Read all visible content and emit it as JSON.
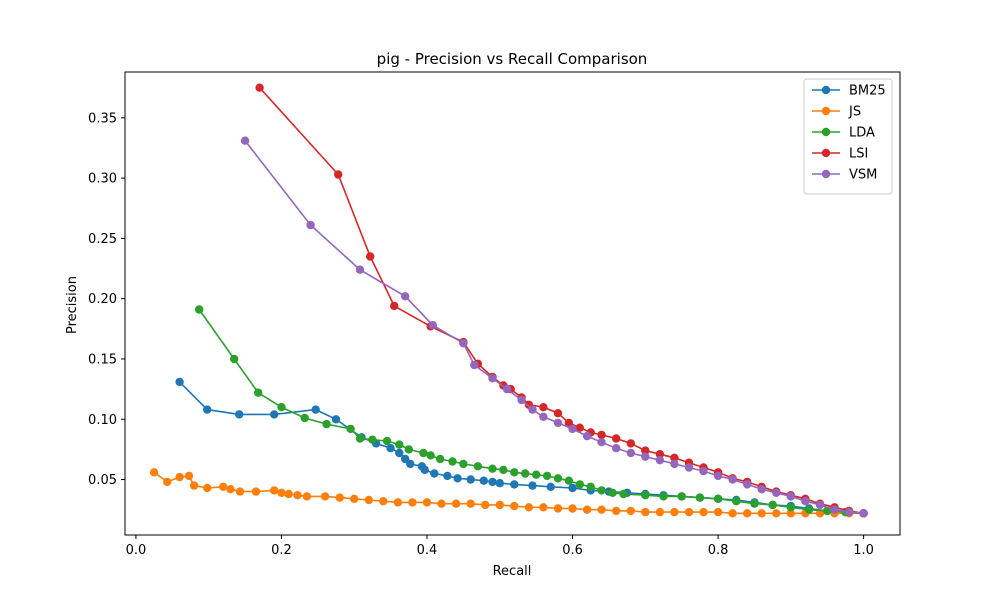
{
  "chart_data": {
    "type": "line",
    "title": "pig - Precision vs Recall Comparison",
    "xlabel": "Recall",
    "ylabel": "Precision",
    "xlim": [
      -0.015,
      1.05
    ],
    "ylim": [
      0.004,
      0.388
    ],
    "xticks": [
      0.0,
      0.2,
      0.4,
      0.6,
      0.8,
      1.0
    ],
    "xtick_labels": [
      "0.0",
      "0.2",
      "0.4",
      "0.6",
      "0.8",
      "1.0"
    ],
    "yticks": [
      0.05,
      0.1,
      0.15,
      0.2,
      0.25,
      0.3,
      0.35
    ],
    "ytick_labels": [
      "0.05",
      "0.10",
      "0.15",
      "0.20",
      "0.25",
      "0.30",
      "0.35"
    ],
    "grid": false,
    "legend_position": "top-right",
    "series": [
      {
        "name": "BM25",
        "color": "#1f77b4",
        "x": [
          0.06,
          0.098,
          0.142,
          0.19,
          0.247,
          0.275,
          0.31,
          0.33,
          0.35,
          0.362,
          0.37,
          0.377,
          0.393,
          0.397,
          0.41,
          0.428,
          0.442,
          0.46,
          0.478,
          0.49,
          0.5,
          0.52,
          0.545,
          0.57,
          0.6,
          0.625,
          0.65,
          0.675,
          0.7,
          0.725,
          0.75,
          0.775,
          0.8,
          0.825,
          0.85,
          0.875,
          0.9,
          0.925,
          0.95,
          0.975,
          1.0
        ],
        "y": [
          0.131,
          0.108,
          0.104,
          0.104,
          0.108,
          0.1,
          0.085,
          0.08,
          0.076,
          0.072,
          0.067,
          0.063,
          0.061,
          0.058,
          0.055,
          0.053,
          0.051,
          0.05,
          0.049,
          0.048,
          0.047,
          0.046,
          0.045,
          0.044,
          0.043,
          0.041,
          0.04,
          0.039,
          0.038,
          0.037,
          0.036,
          0.035,
          0.034,
          0.033,
          0.031,
          0.029,
          0.028,
          0.026,
          0.024,
          0.023,
          0.022
        ]
      },
      {
        "name": "JS",
        "color": "#ff7f0e",
        "x": [
          0.025,
          0.043,
          0.06,
          0.073,
          0.08,
          0.098,
          0.12,
          0.13,
          0.143,
          0.165,
          0.19,
          0.2,
          0.21,
          0.222,
          0.235,
          0.26,
          0.28,
          0.3,
          0.32,
          0.34,
          0.36,
          0.38,
          0.4,
          0.42,
          0.44,
          0.46,
          0.48,
          0.5,
          0.52,
          0.54,
          0.56,
          0.58,
          0.6,
          0.62,
          0.64,
          0.66,
          0.68,
          0.7,
          0.72,
          0.74,
          0.76,
          0.78,
          0.8,
          0.82,
          0.84,
          0.86,
          0.88,
          0.9,
          0.92,
          0.94,
          0.96,
          0.98,
          1.0
        ],
        "y": [
          0.056,
          0.048,
          0.052,
          0.053,
          0.045,
          0.043,
          0.044,
          0.042,
          0.04,
          0.04,
          0.041,
          0.039,
          0.038,
          0.037,
          0.036,
          0.036,
          0.035,
          0.034,
          0.033,
          0.032,
          0.031,
          0.031,
          0.031,
          0.03,
          0.03,
          0.03,
          0.029,
          0.029,
          0.028,
          0.027,
          0.027,
          0.026,
          0.026,
          0.025,
          0.025,
          0.024,
          0.024,
          0.023,
          0.023,
          0.023,
          0.023,
          0.023,
          0.023,
          0.022,
          0.022,
          0.022,
          0.022,
          0.022,
          0.022,
          0.022,
          0.022,
          0.022,
          0.022
        ]
      },
      {
        "name": "LDA",
        "color": "#2ca02c",
        "x": [
          0.087,
          0.135,
          0.168,
          0.2,
          0.232,
          0.262,
          0.295,
          0.308,
          0.325,
          0.345,
          0.362,
          0.375,
          0.395,
          0.405,
          0.418,
          0.435,
          0.45,
          0.47,
          0.49,
          0.505,
          0.52,
          0.535,
          0.55,
          0.565,
          0.58,
          0.595,
          0.61,
          0.625,
          0.64,
          0.655,
          0.67,
          0.7,
          0.725,
          0.75,
          0.775,
          0.8,
          0.825,
          0.85,
          0.875,
          0.9,
          0.925,
          0.95,
          0.975,
          1.0
        ],
        "y": [
          0.191,
          0.15,
          0.122,
          0.11,
          0.101,
          0.096,
          0.092,
          0.084,
          0.083,
          0.082,
          0.079,
          0.075,
          0.072,
          0.07,
          0.067,
          0.065,
          0.063,
          0.061,
          0.059,
          0.058,
          0.056,
          0.055,
          0.054,
          0.053,
          0.051,
          0.049,
          0.046,
          0.044,
          0.041,
          0.039,
          0.038,
          0.037,
          0.036,
          0.036,
          0.035,
          0.034,
          0.032,
          0.03,
          0.029,
          0.027,
          0.025,
          0.024,
          0.023,
          0.022
        ]
      },
      {
        "name": "LSI",
        "color": "#d62728",
        "x": [
          0.17,
          0.278,
          0.322,
          0.355,
          0.405,
          0.45,
          0.47,
          0.49,
          0.505,
          0.515,
          0.53,
          0.54,
          0.56,
          0.58,
          0.595,
          0.61,
          0.625,
          0.64,
          0.66,
          0.68,
          0.7,
          0.72,
          0.74,
          0.76,
          0.78,
          0.8,
          0.82,
          0.84,
          0.86,
          0.88,
          0.9,
          0.92,
          0.94,
          0.96,
          0.98,
          1.0
        ],
        "y": [
          0.375,
          0.303,
          0.235,
          0.194,
          0.177,
          0.164,
          0.146,
          0.135,
          0.128,
          0.125,
          0.118,
          0.112,
          0.11,
          0.105,
          0.097,
          0.093,
          0.089,
          0.087,
          0.084,
          0.08,
          0.074,
          0.071,
          0.068,
          0.064,
          0.06,
          0.056,
          0.051,
          0.048,
          0.044,
          0.04,
          0.037,
          0.034,
          0.03,
          0.027,
          0.024,
          0.022
        ]
      },
      {
        "name": "VSM",
        "color": "#9467bd",
        "x": [
          0.15,
          0.24,
          0.308,
          0.37,
          0.408,
          0.45,
          0.465,
          0.49,
          0.51,
          0.53,
          0.545,
          0.56,
          0.58,
          0.6,
          0.62,
          0.64,
          0.66,
          0.68,
          0.7,
          0.72,
          0.74,
          0.76,
          0.78,
          0.8,
          0.82,
          0.84,
          0.86,
          0.88,
          0.9,
          0.92,
          0.94,
          0.96,
          0.98,
          1.0
        ],
        "y": [
          0.331,
          0.261,
          0.224,
          0.202,
          0.178,
          0.163,
          0.145,
          0.134,
          0.125,
          0.116,
          0.108,
          0.102,
          0.097,
          0.092,
          0.086,
          0.081,
          0.076,
          0.072,
          0.069,
          0.066,
          0.063,
          0.06,
          0.057,
          0.053,
          0.05,
          0.046,
          0.042,
          0.039,
          0.036,
          0.032,
          0.029,
          0.025,
          0.023,
          0.022
        ]
      }
    ]
  }
}
